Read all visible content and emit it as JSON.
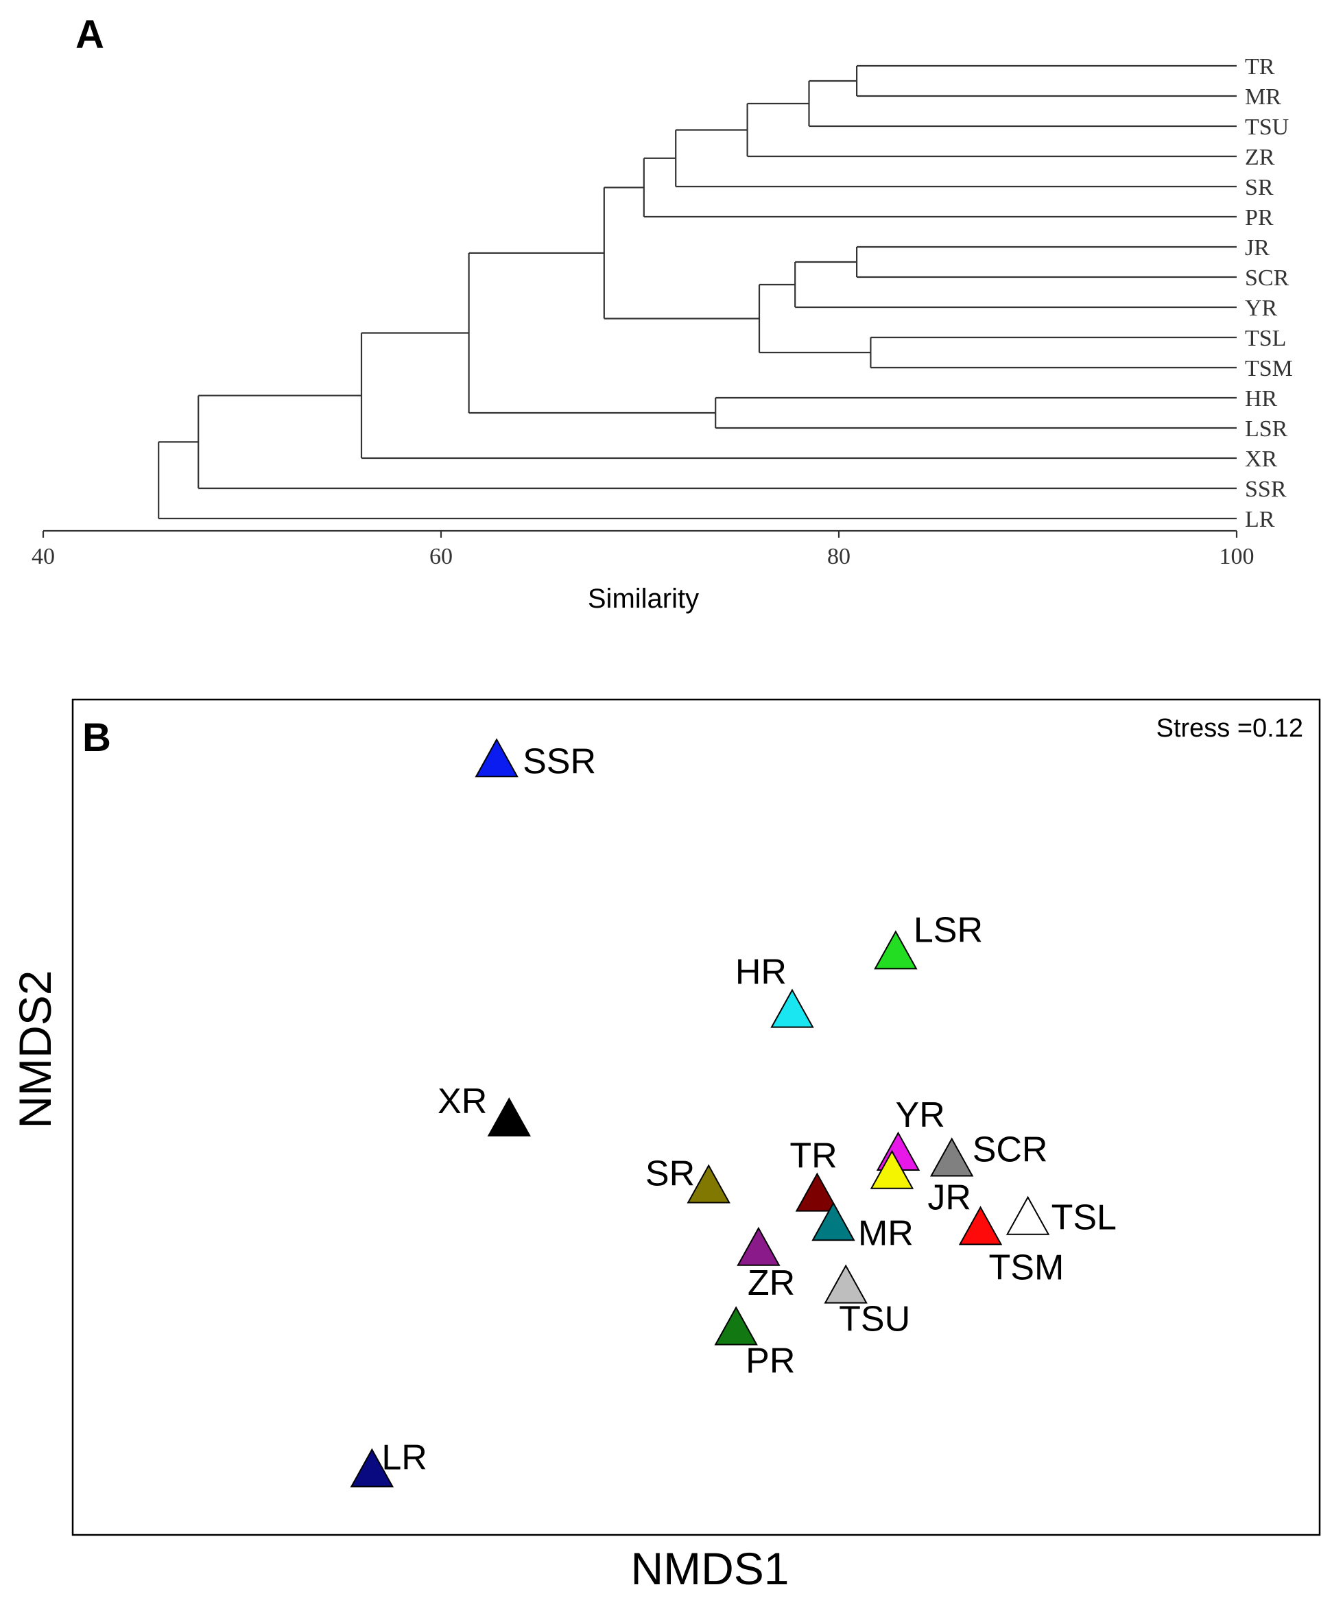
{
  "chart_data": [
    {
      "type": "dendrogram",
      "panel": "A",
      "xlabel": "Similarity",
      "xlim": [
        40,
        100
      ],
      "ticks": [
        40,
        60,
        80,
        100
      ],
      "leaves": [
        "TR",
        "MR",
        "TSU",
        "ZR",
        "SR",
        "PR",
        "JR",
        "SCR",
        "YR",
        "TSL",
        "TSM",
        "HR",
        "LSR",
        "XR",
        "SSR",
        "LR"
      ],
      "merges": [
        {
          "a": "TR",
          "b": "MR",
          "similarity": 80.9
        },
        {
          "a": "TR+MR",
          "b": "TSU",
          "similarity": 78.5
        },
        {
          "a": "TR+MR+TSU",
          "b": "ZR",
          "similarity": 75.4
        },
        {
          "a": "...+ZR",
          "b": "SR",
          "similarity": 71.8
        },
        {
          "a": "...+SR",
          "b": "PR",
          "similarity": 70.2
        },
        {
          "a": "JR",
          "b": "SCR",
          "similarity": 80.9
        },
        {
          "a": "JR+SCR",
          "b": "YR",
          "similarity": 77.8
        },
        {
          "a": "TSL",
          "b": "TSM",
          "similarity": 81.6
        },
        {
          "a": "JR+SCR+YR",
          "b": "TSL+TSM",
          "similarity": 76.0
        },
        {
          "a": "TR...PR",
          "b": "JR...TSM",
          "similarity": 68.2
        },
        {
          "a": "HR",
          "b": "LSR",
          "similarity": 73.8
        },
        {
          "a": "TR...TSM",
          "b": "HR+LSR",
          "similarity": 61.4
        },
        {
          "a": "...+LSR",
          "b": "XR",
          "similarity": 56.0
        },
        {
          "a": "...+XR",
          "b": "SSR",
          "similarity": 47.8
        },
        {
          "a": "...+SSR",
          "b": "LR",
          "similarity": 45.8
        }
      ]
    },
    {
      "type": "scatter",
      "panel": "B",
      "xlabel": "NMDS1",
      "ylabel": "NMDS2",
      "annotation": "Stress =0.12",
      "xlim": [
        0,
        1
      ],
      "ylim": [
        0,
        1
      ],
      "marker": "triangle",
      "points": [
        {
          "label": "SSR",
          "x": 0.34,
          "y": 0.93,
          "color": "#0a1cf0"
        },
        {
          "label": "LSR",
          "x": 0.66,
          "y": 0.7,
          "color": "#22dd22"
        },
        {
          "label": "HR",
          "x": 0.577,
          "y": 0.63,
          "color": "#19e6f0"
        },
        {
          "label": "XR",
          "x": 0.35,
          "y": 0.5,
          "color": "#000000"
        },
        {
          "label": "YR",
          "x": 0.662,
          "y": 0.459,
          "color": "#e818e8"
        },
        {
          "label": "SCR",
          "x": 0.705,
          "y": 0.452,
          "color": "#808080"
        },
        {
          "label": "JR",
          "x": 0.657,
          "y": 0.437,
          "color": "#f5f500"
        },
        {
          "label": "SR",
          "x": 0.51,
          "y": 0.42,
          "color": "#807800"
        },
        {
          "label": "TR",
          "x": 0.597,
          "y": 0.41,
          "color": "#7d0000"
        },
        {
          "label": "MR",
          "x": 0.61,
          "y": 0.375,
          "color": "#007a80"
        },
        {
          "label": "TSL",
          "x": 0.766,
          "y": 0.382,
          "color": "#ffffff"
        },
        {
          "label": "TSM",
          "x": 0.728,
          "y": 0.37,
          "color": "#ff0a0a"
        },
        {
          "label": "ZR",
          "x": 0.55,
          "y": 0.345,
          "color": "#8a1a8a"
        },
        {
          "label": "TSU",
          "x": 0.62,
          "y": 0.3,
          "color": "#bebebe"
        },
        {
          "label": "PR",
          "x": 0.532,
          "y": 0.25,
          "color": "#127812"
        },
        {
          "label": "LR",
          "x": 0.24,
          "y": 0.08,
          "color": "#0a0a80"
        }
      ]
    }
  ]
}
